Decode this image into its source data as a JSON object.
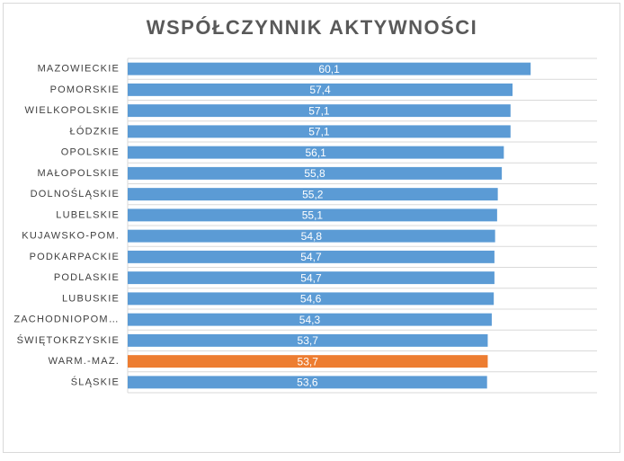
{
  "chart_data": {
    "type": "barh",
    "title": "WSPÓŁCZYNNIK AKTYWNOŚCI",
    "categories": [
      "MAZOWIECKIE",
      "POMORSKIE",
      "WIELKOPOLSKIE",
      "ŁÓDZKIE",
      "OPOLSKIE",
      "MAŁOPOLSKIE",
      "DOLNOŚLĄSKIE",
      "LUBELSKIE",
      "KUJAWSKO-POM.",
      "PODKARPACKIE",
      "PODLASKIE",
      "LUBUSKIE",
      "ZACHODNIOPOM…",
      "ŚWIĘTOKRZYSKIE",
      "WARM.-MAZ.",
      "ŚLĄSKIE"
    ],
    "values": [
      60.1,
      57.4,
      57.1,
      57.1,
      56.1,
      55.8,
      55.2,
      55.1,
      54.8,
      54.7,
      54.7,
      54.6,
      54.3,
      53.7,
      53.7,
      53.6
    ],
    "value_labels": [
      "60,1",
      "57,4",
      "57,1",
      "57,1",
      "56,1",
      "55,8",
      "55,2",
      "55,1",
      "54,8",
      "54,7",
      "54,7",
      "54,6",
      "54,3",
      "53,7",
      "53,7",
      "53,6"
    ],
    "colors": [
      "#5b9bd5",
      "#5b9bd5",
      "#5b9bd5",
      "#5b9bd5",
      "#5b9bd5",
      "#5b9bd5",
      "#5b9bd5",
      "#5b9bd5",
      "#5b9bd5",
      "#5b9bd5",
      "#5b9bd5",
      "#5b9bd5",
      "#5b9bd5",
      "#5b9bd5",
      "#ed7d31",
      "#5b9bd5"
    ],
    "xlim": [
      0,
      70
    ],
    "grid": true
  }
}
